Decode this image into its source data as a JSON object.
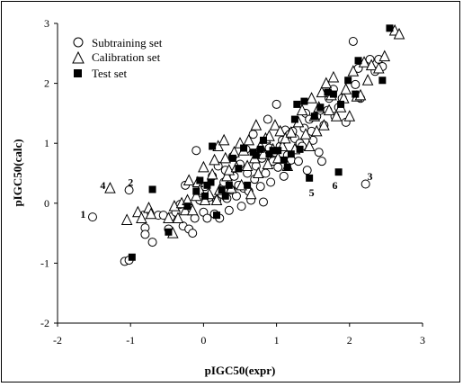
{
  "chart_data": {
    "type": "scatter",
    "xlabel": "pIGC50(expr)",
    "ylabel": "pIGC50(calc)",
    "xlim": [
      -2,
      3
    ],
    "ylim": [
      -2,
      3
    ],
    "x_ticks": [
      "-2",
      "-1",
      "0",
      "1",
      "2",
      "3"
    ],
    "y_ticks": [
      "3",
      "2",
      "1",
      "0",
      "-1",
      "-2"
    ],
    "grid": false,
    "legend_position": "top-left",
    "series": [
      {
        "name": "Subtraining set",
        "marker": "open-circle",
        "points": [
          [
            -1.52,
            -0.23
          ],
          [
            -1.08,
            -0.97
          ],
          [
            -1.02,
            0.22
          ],
          [
            -1.02,
            -0.95
          ],
          [
            -0.82,
            -0.2
          ],
          [
            -0.8,
            -0.41
          ],
          [
            -0.8,
            -0.52
          ],
          [
            -0.7,
            -0.65
          ],
          [
            -0.62,
            -0.2
          ],
          [
            -0.55,
            -0.2
          ],
          [
            -0.48,
            -0.43
          ],
          [
            -0.45,
            -0.23
          ],
          [
            -0.38,
            -0.15
          ],
          [
            -0.32,
            -0.02
          ],
          [
            -0.28,
            -0.38
          ],
          [
            -0.25,
            0.3
          ],
          [
            -0.2,
            -0.43
          ],
          [
            -0.15,
            -0.5
          ],
          [
            -0.12,
            -0.25
          ],
          [
            -0.1,
            0.88
          ],
          [
            -0.05,
            0.05
          ],
          [
            0.0,
            -0.15
          ],
          [
            0.02,
            0.28
          ],
          [
            0.05,
            -0.25
          ],
          [
            0.08,
            0.1
          ],
          [
            0.12,
            0.45
          ],
          [
            0.15,
            -0.18
          ],
          [
            0.18,
            0.05
          ],
          [
            0.2,
            0.62
          ],
          [
            0.22,
            -0.25
          ],
          [
            0.25,
            0.15
          ],
          [
            0.28,
            0.35
          ],
          [
            0.3,
            0.55
          ],
          [
            0.32,
            0.08
          ],
          [
            0.35,
            -0.12
          ],
          [
            0.38,
            0.22
          ],
          [
            0.4,
            0.78
          ],
          [
            0.42,
            0.45
          ],
          [
            0.45,
            0.12
          ],
          [
            0.48,
            0.3
          ],
          [
            0.5,
            0.65
          ],
          [
            0.52,
            -0.05
          ],
          [
            0.55,
            0.25
          ],
          [
            0.58,
            0.9
          ],
          [
            0.6,
            0.5
          ],
          [
            0.62,
            0.2
          ],
          [
            0.65,
            0.05
          ],
          [
            0.68,
            1.15
          ],
          [
            0.7,
            0.4
          ],
          [
            0.72,
            0.62
          ],
          [
            0.75,
            0.85
          ],
          [
            0.78,
            0.28
          ],
          [
            0.8,
            0.75
          ],
          [
            0.82,
            0.02
          ],
          [
            0.85,
            0.5
          ],
          [
            0.88,
            1.4
          ],
          [
            0.9,
            0.92
          ],
          [
            0.92,
            0.35
          ],
          [
            0.95,
            0.7
          ],
          [
            0.98,
            0.85
          ],
          [
            1.0,
            1.65
          ],
          [
            1.02,
            0.6
          ],
          [
            1.05,
            0.95
          ],
          [
            1.08,
            1.05
          ],
          [
            1.1,
            0.45
          ],
          [
            1.12,
            1.22
          ],
          [
            1.15,
            0.8
          ],
          [
            1.18,
            1.15
          ],
          [
            1.2,
            0.72
          ],
          [
            1.22,
            1.2
          ],
          [
            1.25,
            1.08
          ],
          [
            1.28,
            0.9
          ],
          [
            1.3,
            0.7
          ],
          [
            1.32,
            1.0
          ],
          [
            1.35,
            0.95
          ],
          [
            1.38,
            1.25
          ],
          [
            1.4,
            1.5
          ],
          [
            1.42,
            0.55
          ],
          [
            1.45,
            1.4
          ],
          [
            1.48,
            1.2
          ],
          [
            1.5,
            1.05
          ],
          [
            1.55,
            1.45
          ],
          [
            1.58,
            0.85
          ],
          [
            1.6,
            1.55
          ],
          [
            1.62,
            0.7
          ],
          [
            1.65,
            1.3
          ],
          [
            1.7,
            1.55
          ],
          [
            1.72,
            1.75
          ],
          [
            1.78,
            1.9
          ],
          [
            1.8,
            1.45
          ],
          [
            1.85,
            1.6
          ],
          [
            1.9,
            1.75
          ],
          [
            1.95,
            1.35
          ],
          [
            2.05,
            2.7
          ],
          [
            2.08,
            1.98
          ],
          [
            2.12,
            2.25
          ],
          [
            2.15,
            1.75
          ],
          [
            2.22,
            0.32
          ],
          [
            2.28,
            2.4
          ],
          [
            2.35,
            2.2
          ],
          [
            2.4,
            2.4
          ],
          [
            2.45,
            2.28
          ]
        ]
      },
      {
        "name": "Calibration set",
        "marker": "open-triangle",
        "points": [
          [
            -1.28,
            0.25
          ],
          [
            -1.05,
            -0.28
          ],
          [
            -0.9,
            -0.15
          ],
          [
            -0.85,
            -0.25
          ],
          [
            -0.75,
            -0.08
          ],
          [
            -0.72,
            -0.18
          ],
          [
            -0.48,
            -0.25
          ],
          [
            -0.42,
            -0.5
          ],
          [
            -0.4,
            -0.05
          ],
          [
            -0.35,
            -0.25
          ],
          [
            -0.3,
            0.0
          ],
          [
            -0.25,
            -0.12
          ],
          [
            -0.22,
            0.05
          ],
          [
            -0.2,
            0.38
          ],
          [
            -0.15,
            -0.12
          ],
          [
            -0.1,
            0.12
          ],
          [
            -0.08,
            0.35
          ],
          [
            -0.05,
            0.22
          ],
          [
            0.0,
            0.6
          ],
          [
            0.02,
            0.05
          ],
          [
            0.08,
            0.15
          ],
          [
            0.12,
            0.48
          ],
          [
            0.15,
            0.72
          ],
          [
            0.18,
            0.05
          ],
          [
            0.2,
            0.95
          ],
          [
            0.22,
            0.22
          ],
          [
            0.28,
            1.05
          ],
          [
            0.3,
            0.75
          ],
          [
            0.32,
            0.45
          ],
          [
            0.35,
            0.55
          ],
          [
            0.38,
            0.25
          ],
          [
            0.42,
            0.85
          ],
          [
            0.45,
            0.6
          ],
          [
            0.5,
            1.0
          ],
          [
            0.52,
            0.3
          ],
          [
            0.55,
            0.88
          ],
          [
            0.6,
            0.62
          ],
          [
            0.62,
            1.05
          ],
          [
            0.65,
            0.15
          ],
          [
            0.7,
            0.75
          ],
          [
            0.72,
            1.3
          ],
          [
            0.75,
            0.5
          ],
          [
            0.78,
            0.95
          ],
          [
            0.82,
            0.82
          ],
          [
            0.85,
            1.08
          ],
          [
            0.88,
            0.65
          ],
          [
            0.9,
            1.12
          ],
          [
            0.95,
            0.9
          ],
          [
            0.98,
            1.3
          ],
          [
            1.02,
            0.75
          ],
          [
            1.05,
            1.2
          ],
          [
            1.08,
            0.95
          ],
          [
            1.12,
            1.08
          ],
          [
            1.15,
            0.62
          ],
          [
            1.2,
            1.18
          ],
          [
            1.25,
            0.9
          ],
          [
            1.3,
            1.35
          ],
          [
            1.35,
            1.55
          ],
          [
            1.4,
            1.15
          ],
          [
            1.45,
            0.95
          ],
          [
            1.48,
            1.75
          ],
          [
            1.52,
            1.45
          ],
          [
            1.55,
            1.2
          ],
          [
            1.58,
            1.6
          ],
          [
            1.62,
            1.85
          ],
          [
            1.65,
            1.3
          ],
          [
            1.68,
            2.0
          ],
          [
            1.72,
            1.55
          ],
          [
            1.75,
            1.8
          ],
          [
            1.78,
            2.1
          ],
          [
            1.82,
            1.45
          ],
          [
            1.88,
            1.6
          ],
          [
            1.92,
            1.75
          ],
          [
            1.95,
            1.9
          ],
          [
            2.0,
            1.45
          ],
          [
            2.05,
            2.2
          ],
          [
            2.1,
            1.78
          ],
          [
            2.15,
            1.8
          ],
          [
            2.2,
            2.35
          ],
          [
            2.25,
            2.05
          ],
          [
            2.3,
            2.3
          ],
          [
            2.4,
            2.25
          ],
          [
            2.48,
            2.45
          ],
          [
            2.62,
            2.88
          ],
          [
            2.68,
            2.82
          ]
        ]
      },
      {
        "name": "Test set",
        "marker": "filled-square",
        "points": [
          [
            -0.98,
            -0.9
          ],
          [
            -0.7,
            0.23
          ],
          [
            -0.48,
            -0.48
          ],
          [
            -0.22,
            -0.05
          ],
          [
            -0.1,
            0.2
          ],
          [
            -0.05,
            0.38
          ],
          [
            0.02,
            0.12
          ],
          [
            0.05,
            0.3
          ],
          [
            0.1,
            0.35
          ],
          [
            0.12,
            0.95
          ],
          [
            0.18,
            -0.2
          ],
          [
            0.25,
            0.22
          ],
          [
            0.3,
            0.12
          ],
          [
            0.35,
            0.3
          ],
          [
            0.4,
            0.75
          ],
          [
            0.48,
            0.58
          ],
          [
            0.55,
            0.92
          ],
          [
            0.6,
            0.3
          ],
          [
            0.68,
            0.85
          ],
          [
            0.72,
            0.8
          ],
          [
            0.78,
            0.9
          ],
          [
            0.82,
            1.05
          ],
          [
            0.9,
            0.82
          ],
          [
            0.95,
            0.88
          ],
          [
            1.02,
            0.88
          ],
          [
            1.1,
            0.72
          ],
          [
            1.15,
            0.6
          ],
          [
            1.2,
            0.82
          ],
          [
            1.25,
            1.4
          ],
          [
            1.28,
            1.65
          ],
          [
            1.32,
            0.9
          ],
          [
            1.38,
            1.7
          ],
          [
            1.45,
            0.42
          ],
          [
            1.52,
            1.45
          ],
          [
            1.6,
            1.6
          ],
          [
            1.7,
            1.85
          ],
          [
            1.78,
            1.82
          ],
          [
            1.85,
            0.52
          ],
          [
            1.88,
            1.65
          ],
          [
            1.98,
            2.05
          ],
          [
            2.08,
            1.82
          ],
          [
            2.12,
            2.38
          ],
          [
            2.45,
            2.05
          ],
          [
            2.55,
            2.92
          ]
        ]
      }
    ],
    "annotations": [
      {
        "text": "1",
        "x": -1.65,
        "y": -0.18
      },
      {
        "text": "2",
        "x": -1.0,
        "y": 0.35
      },
      {
        "text": "3",
        "x": 2.28,
        "y": 0.45
      },
      {
        "text": "4",
        "x": -1.38,
        "y": 0.3
      },
      {
        "text": "5",
        "x": 1.48,
        "y": 0.18
      },
      {
        "text": "6",
        "x": 1.8,
        "y": 0.3
      }
    ]
  }
}
